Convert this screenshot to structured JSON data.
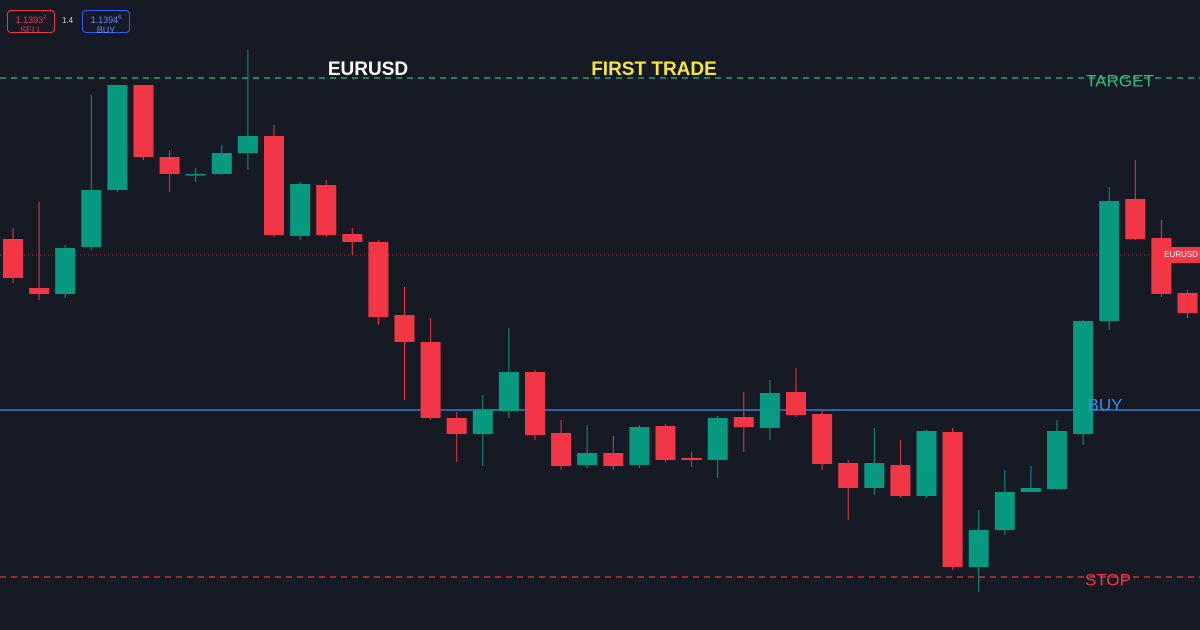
{
  "header": {
    "sell": {
      "price": "1.1393",
      "pip": "2",
      "label": "SELL"
    },
    "spread": "1.4",
    "buy": {
      "price": "1.1394",
      "pip": "6",
      "label": "BUY"
    }
  },
  "chart_data": {
    "type": "candlestick",
    "title": "EURUSD",
    "subtitle": "FIRST TRADE",
    "ylim": [
      1.13565,
      1.14195
    ],
    "up_color": "#089981",
    "down_color": "#f23645",
    "open": [
      1.13956,
      1.13907,
      1.13901,
      1.13948,
      1.14005,
      1.1411,
      1.14038,
      1.1402,
      1.14021,
      1.14042,
      1.14059,
      1.13959,
      1.1401,
      1.13961,
      1.13953,
      1.1388,
      1.13853,
      1.13777,
      1.13761,
      1.13784,
      1.13823,
      1.13762,
      1.1373,
      1.13742,
      1.1373,
      1.13769,
      1.13737,
      1.13735,
      1.13778,
      1.13767,
      1.13803,
      1.13781,
      1.13732,
      1.13707,
      1.1373,
      1.13699,
      1.13763,
      1.13628,
      1.13665,
      1.13703,
      1.13706,
      1.13761,
      1.13874,
      1.13996,
      1.13957,
      1.13902
    ],
    "high": [
      1.13967,
      1.13993,
      1.1395,
      1.141,
      1.1411,
      1.1411,
      1.14045,
      1.14027,
      1.1405,
      1.14145,
      1.1407,
      1.14013,
      1.14015,
      1.13967,
      1.13955,
      1.13908,
      1.13877,
      1.13783,
      1.138,
      1.13867,
      1.13825,
      1.13775,
      1.1377,
      1.13759,
      1.1377,
      1.13771,
      1.13743,
      1.13779,
      1.13803,
      1.13815,
      1.13827,
      1.13785,
      1.13735,
      1.13767,
      1.13755,
      1.13765,
      1.13767,
      1.13685,
      1.13725,
      1.13729,
      1.13775,
      1.13875,
      1.14008,
      1.14035,
      1.13975,
      1.13905
    ],
    "low": [
      1.13912,
      1.13895,
      1.13897,
      1.13945,
      1.14003,
      1.14035,
      1.14003,
      1.14013,
      1.1402,
      1.14025,
      1.13958,
      1.13955,
      1.13958,
      1.1394,
      1.1387,
      1.13795,
      1.13775,
      1.13733,
      1.13729,
      1.13777,
      1.13755,
      1.13725,
      1.13727,
      1.13725,
      1.13727,
      1.13733,
      1.13728,
      1.13717,
      1.13743,
      1.13755,
      1.13778,
      1.13725,
      1.13675,
      1.137,
      1.13697,
      1.13697,
      1.13625,
      1.13603,
      1.1366,
      1.13703,
      1.13705,
      1.1375,
      1.13865,
      1.13955,
      1.13898,
      1.13877
    ],
    "close": [
      1.13917,
      1.13901,
      1.13947,
      1.14005,
      1.1411,
      1.14038,
      1.14021,
      1.14021,
      1.14042,
      1.14059,
      1.1396,
      1.14011,
      1.1396,
      1.13953,
      1.13878,
      1.13853,
      1.13777,
      1.13761,
      1.13785,
      1.13823,
      1.1376,
      1.13729,
      1.13742,
      1.13729,
      1.13768,
      1.13735,
      1.13735,
      1.13777,
      1.13768,
      1.13802,
      1.1378,
      1.13731,
      1.13707,
      1.13732,
      1.13699,
      1.13764,
      1.13628,
      1.13665,
      1.13703,
      1.13707,
      1.13764,
      1.13874,
      1.13994,
      1.13956,
      1.13901,
      1.13882
    ],
    "levels": [
      {
        "label": "TARGET",
        "value": 1.14117,
        "color": "#2ebd85",
        "style": "dashed"
      },
      {
        "label": "BUY",
        "value": 1.13785,
        "color": "#3d8ef0",
        "style": "solid"
      },
      {
        "label": "STOP",
        "value": 1.13618,
        "color": "#f23645",
        "style": "dashed"
      }
    ],
    "last_price": {
      "label": "EURUSD",
      "value": 1.1394,
      "color": "#f23645"
    }
  }
}
